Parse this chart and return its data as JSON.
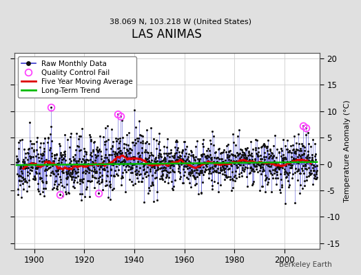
{
  "title": "LAS ANIMAS",
  "subtitle": "38.069 N, 103.218 W (United States)",
  "ylabel": "Temperature Anomaly (°C)",
  "watermark": "Berkeley Earth",
  "year_start": 1893,
  "year_end": 2013,
  "ylim": [
    -16,
    21
  ],
  "yticks": [
    -15,
    -10,
    -5,
    0,
    5,
    10,
    15,
    20
  ],
  "background_color": "#e0e0e0",
  "plot_bg_color": "#ffffff",
  "raw_line_color": "#3333cc",
  "raw_marker_color": "#111111",
  "qc_fail_color": "#ff44ff",
  "moving_avg_color": "#dd0000",
  "trend_color": "#00bb00",
  "seed": 77,
  "num_months": 1452,
  "qc_fail_indices_pos": [
    165,
    487,
    503,
    1385,
    1397
  ],
  "qc_fail_indices_neg": [
    210,
    395
  ],
  "spike_pos_values": [
    10.8,
    8.5,
    7.8,
    7.2,
    6.8
  ],
  "spike_neg_values": [
    -5.8,
    -5.5
  ]
}
